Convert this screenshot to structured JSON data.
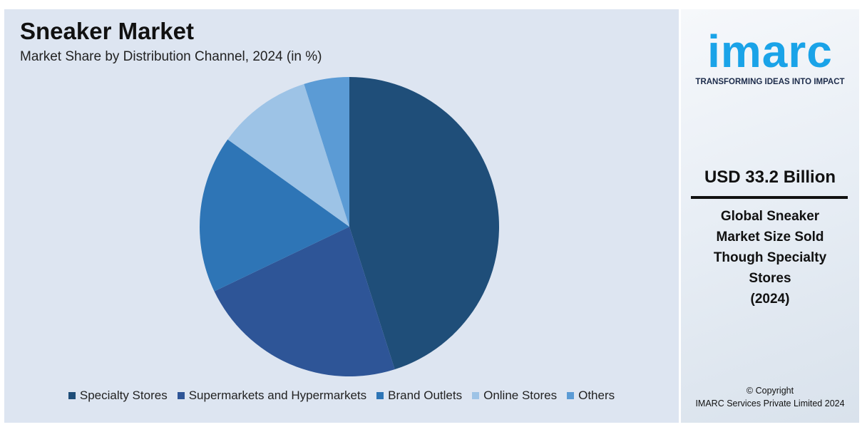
{
  "chart_data": {
    "type": "pie",
    "title": "Sneaker Market",
    "subtitle": "Market Share by Distribution Channel, 2024 (in %)",
    "categories": [
      "Specialty Stores",
      "Supermarkets and Hypermarkets",
      "Brand Outlets",
      "Online Stores",
      "Others"
    ],
    "values": [
      45.1,
      22.8,
      17.0,
      10.2,
      4.9
    ],
    "colors": [
      "#1f4e79",
      "#2e5597",
      "#2e75b6",
      "#9dc3e6",
      "#5b9bd5"
    ],
    "legend": "bottom"
  },
  "sidebar": {
    "logo": "imarc",
    "tagline": "TRANSFORMING IDEAS INTO IMPACT",
    "headline": "USD 33.2 Billion",
    "description_lines": [
      "Global Sneaker",
      "Market Size Sold",
      "Though Specialty",
      "Stores",
      "(2024)"
    ],
    "copyright": "© Copyright",
    "company": "IMARC Services Private Limited 2024"
  }
}
